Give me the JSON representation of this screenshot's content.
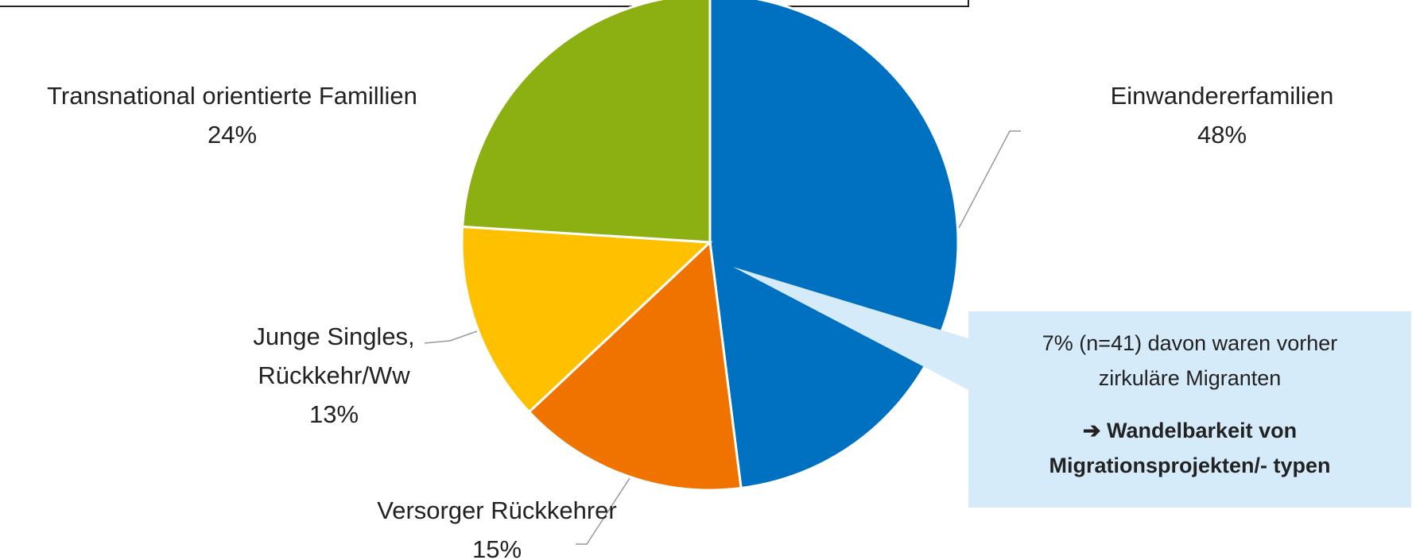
{
  "chart_data": {
    "type": "pie",
    "categories": [
      "Einwandererfamilien",
      "Versorger Rückkehrer",
      "Junge Singles, Rückkehr/Ww",
      "Transnational orientierte Famillien"
    ],
    "values": [
      48,
      15,
      13,
      24
    ],
    "value_labels": [
      "48%",
      "15%",
      "13%",
      "24%"
    ],
    "colors": [
      "#0070c0",
      "#f07300",
      "#ffc000",
      "#8cb012"
    ],
    "annotation": {
      "text": "7% (n=41) davon waren vorher zirkuläre Migranten",
      "emphasis": "➔ Wandelbarkeit von Migrationsprojekten/- typen"
    }
  }
}
